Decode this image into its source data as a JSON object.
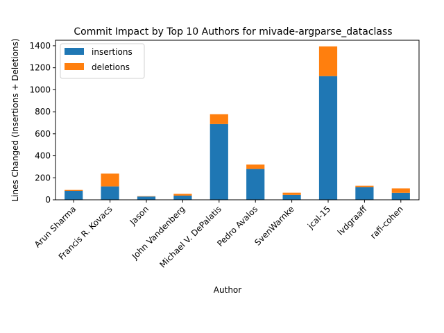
{
  "chart_data": {
    "type": "bar",
    "stacked": true,
    "title": "Commit Impact by Top 10 Authors for mivade-argparse_dataclass",
    "xlabel": "Author",
    "ylabel": "Lines Changed (Insertions + Deletions)",
    "categories": [
      "Arun Sharma",
      "Francis R. Kovacs",
      "Jason",
      "John Vandenberg",
      "Michael V. DePalatis",
      "Pedro Avalos",
      "SvenWarnke",
      "jcal-15",
      "lvdgraaff",
      "rafi-cohen"
    ],
    "series": [
      {
        "name": "insertions",
        "color": "#1f77b4",
        "values": [
          82,
          122,
          30,
          38,
          688,
          280,
          45,
          1124,
          115,
          64
        ]
      },
      {
        "name": "deletions",
        "color": "#ff7f0e",
        "values": [
          8,
          116,
          3,
          16,
          90,
          40,
          20,
          270,
          13,
          40
        ]
      }
    ],
    "ylim": [
      0,
      1450
    ],
    "yticks": [
      0,
      200,
      400,
      600,
      800,
      1000,
      1200,
      1400
    ],
    "legend_position": "upper-left",
    "grid": false
  }
}
